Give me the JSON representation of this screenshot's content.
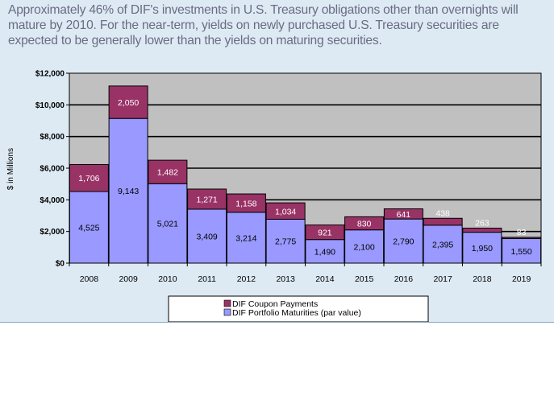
{
  "headline": "Approximately 46% of DIF's investments in U.S. Treasury obligations other than overnights will mature by 2010.  For the near-term, yields on newly purchased U.S. Treasury securities are expected to be generally lower than the yields on maturing securities.",
  "colors": {
    "panel": "#ddeaf4",
    "plot_area": "#c0c0c0",
    "maturities": "#9999ff",
    "coupons": "#993366"
  },
  "chart_data": {
    "type": "bar",
    "stacked": true,
    "categories": [
      "2008",
      "2009",
      "2010",
      "2011",
      "2012",
      "2013",
      "2014",
      "2015",
      "2016",
      "2017",
      "2018",
      "2019"
    ],
    "series": [
      {
        "name": "DIF Portfolio Maturities (par value)",
        "values": [
          4525,
          9143,
          5021,
          3409,
          3214,
          2775,
          1490,
          2100,
          2790,
          2395,
          1950,
          1550
        ],
        "labels": [
          "4,525",
          "9,143",
          "5,021",
          "3,409",
          "3,214",
          "2,775",
          "1,490",
          "2,100",
          "2,790",
          "2,395",
          "1,950",
          "1,550"
        ]
      },
      {
        "name": "DIF Coupon Payments",
        "values": [
          1706,
          2050,
          1482,
          1271,
          1158,
          1034,
          921,
          830,
          641,
          438,
          263,
          83
        ],
        "labels": [
          "1,706",
          "2,050",
          "1,482",
          "1,271",
          "1,158",
          "1,034",
          "921",
          "830",
          "641",
          "438",
          "263",
          "83"
        ]
      }
    ],
    "yticks": [
      "$0",
      "$2,000",
      "$4,000",
      "$6,000",
      "$8,000",
      "$10,000",
      "$12,000"
    ],
    "ylim": [
      0,
      12000
    ],
    "ylabel": "$ in Millions",
    "xlabel": "",
    "grid": true,
    "legend_position": "bottom"
  }
}
